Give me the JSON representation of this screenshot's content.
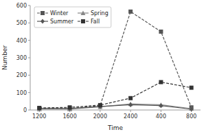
{
  "chart_data": {
    "type": "line",
    "xlabel": "Time",
    "ylabel": "Number",
    "categories": [
      "1200",
      "1600",
      "2000",
      "2400",
      "400",
      "800"
    ],
    "series": [
      {
        "name": "Winter",
        "color": "#555555",
        "marker": "square",
        "line_style": "dashed",
        "values": [
          10,
          8,
          25,
          565,
          450,
          15
        ]
      },
      {
        "name": "Spring",
        "color": "#888888",
        "marker": "triangle",
        "line_style": "solid",
        "values": [
          5,
          5,
          18,
          35,
          30,
          8
        ]
      },
      {
        "name": "Summer",
        "color": "#555555",
        "marker": "diamond",
        "line_style": "solid",
        "values": [
          8,
          8,
          20,
          30,
          25,
          5
        ]
      },
      {
        "name": "Fall",
        "color": "#333333",
        "marker": "square",
        "line_style": "dashed",
        "values": [
          12,
          15,
          28,
          68,
          160,
          128
        ]
      }
    ],
    "ylim": [
      0,
      600
    ],
    "yticks": [
      0,
      100,
      200,
      300,
      400,
      500,
      600
    ],
    "grid": false,
    "legend": "upper left"
  }
}
